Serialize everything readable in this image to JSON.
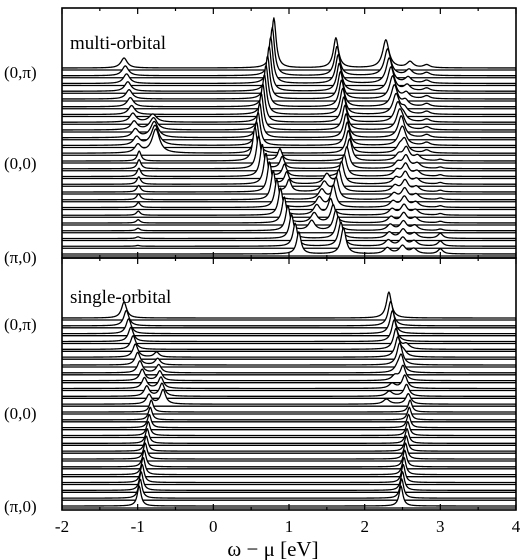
{
  "chart_data": {
    "type": "line",
    "xlabel": "ω − μ [eV]",
    "xlim": [
      -2,
      4
    ],
    "x_ticks": [
      "-2",
      "-1",
      "0",
      "1",
      "2",
      "3",
      "4"
    ],
    "panels": [
      {
        "name": "multi-orbital",
        "label": "multi-orbital",
        "y_ticks": [
          "(0,π)",
          "(0,0)",
          "(π,0)"
        ],
        "momenta_count": 25,
        "series_note": "stacked spectra A(k, ω) for k along (π,0) → (0,0) → (0,π); index 0 = (π,0), 12 = (0,0), 24 = (0,π)",
        "anchor_peaks": [
          {
            "k": "(π,0)",
            "peaks_eV": [
              1.13,
              1.72,
              2.5,
              3.0
            ]
          },
          {
            "k": "(0,0)",
            "peaks_eV": [
              -0.98,
              0.55,
              1.8,
              2.55
            ]
          },
          {
            "k": "(0,π)",
            "peaks_eV": [
              -1.18,
              0.8,
              1.62,
              2.28,
              2.82
            ]
          }
        ]
      },
      {
        "name": "single-orbital",
        "label": "single-orbital",
        "y_ticks": [
          "(0,π)",
          "(0,0)",
          "(π,0)"
        ],
        "momenta_count": 25,
        "series_note": "stacked spectra A(k, ω) for k along (π,0) → (0,0) → (0,π)",
        "anchor_peaks": [
          {
            "k": "(π,0)",
            "peaks_eV": [
              -0.98,
              2.48
            ]
          },
          {
            "k": "(0,0)",
            "peaks_eV": [
              -0.82,
              2.6
            ]
          },
          {
            "k": "(0,π)",
            "peaks_eV": [
              -1.18,
              2.32
            ]
          }
        ]
      }
    ]
  }
}
